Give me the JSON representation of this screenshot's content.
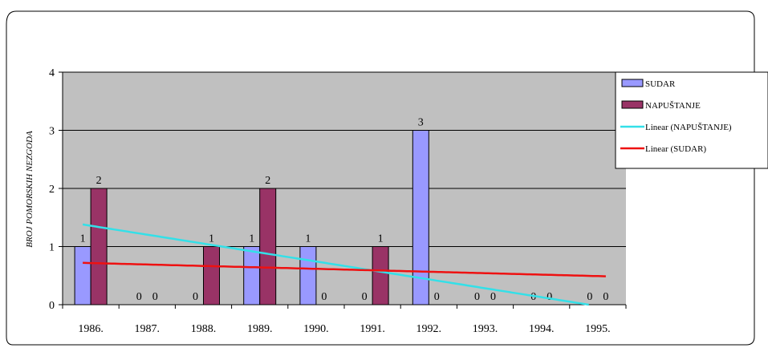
{
  "chart_data": {
    "type": "bar",
    "ylabel": "BROJ POMORSKIH NEZGODA",
    "categories": [
      "1986.",
      "1987.",
      "1988.",
      "1989.",
      "1990.",
      "1991.",
      "1992.",
      "1993.",
      "1994.",
      "1995."
    ],
    "ylim": [
      0,
      4
    ],
    "yticks": [
      "0",
      "1",
      "2",
      "3",
      "4"
    ],
    "grid": true,
    "legend_position": "right",
    "series": [
      {
        "name": "SUDAR",
        "values": [
          1,
          0,
          0,
          1,
          1,
          0,
          3,
          0,
          0,
          0
        ],
        "color": "#9999ff"
      },
      {
        "name": "NAPUŠTANJE",
        "values": [
          2,
          0,
          1,
          2,
          0,
          1,
          0,
          0,
          0,
          0
        ],
        "color": "#993366"
      }
    ],
    "trendlines": [
      {
        "name": "Linear (NAPUŠTANJE)",
        "of": "NAPUŠTANJE",
        "color": "#33e0e8",
        "start": 1.38,
        "slope": -0.1585,
        "end_at": 0
      },
      {
        "name": "Linear (SUDAR)",
        "of": "SUDAR",
        "color": "#ee1111",
        "start": 0.72,
        "slope": -0.0257
      }
    ],
    "plot_background": "#c0c0c0"
  }
}
